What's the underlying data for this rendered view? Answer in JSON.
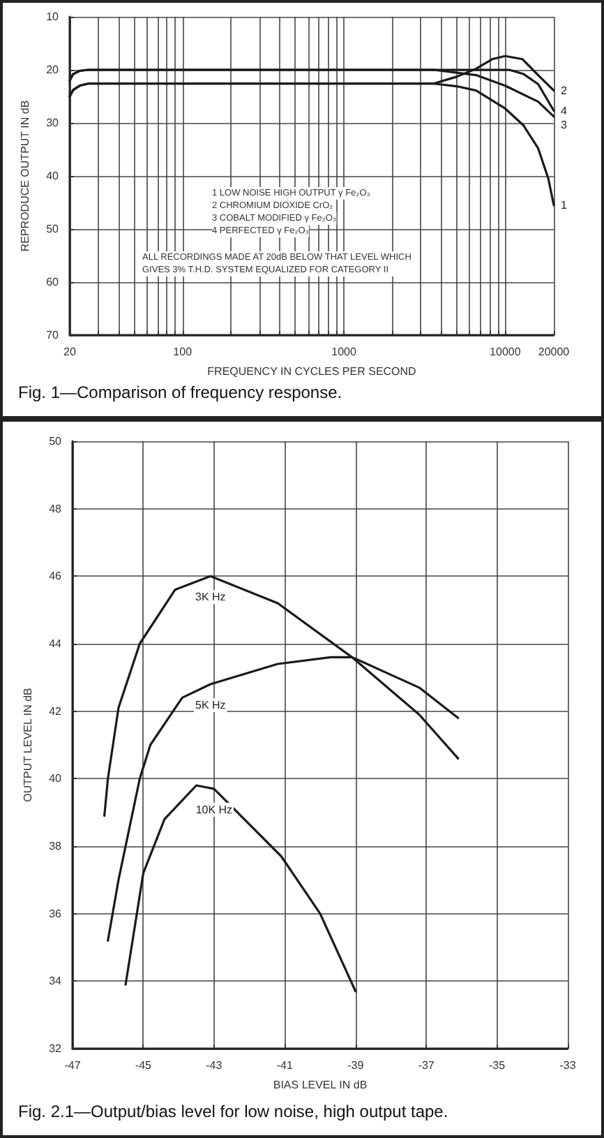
{
  "chart_data": [
    {
      "type": "line",
      "title": "Fig. 1—Comparison of frequency response.",
      "xlabel": "FREQUENCY IN CYCLES PER SECOND",
      "ylabel": "REPRODUCE OUTPUT IN dB",
      "log": "x",
      "grid": true,
      "marker": "none",
      "line_style": "solid",
      "legend": false,
      "xlim": [
        20,
        20000
      ],
      "ylim": [
        70,
        10
      ],
      "xticks": [
        20,
        {
          "value": 30,
          "label": null
        },
        {
          "value": 40,
          "label": null
        },
        {
          "value": 50,
          "label": null
        },
        {
          "value": 60,
          "label": null
        },
        {
          "value": 70,
          "label": null
        },
        {
          "value": 80,
          "label": null
        },
        {
          "value": 90,
          "label": null
        },
        100,
        {
          "value": 200,
          "label": null
        },
        {
          "value": 300,
          "label": null
        },
        {
          "value": 400,
          "label": null
        },
        {
          "value": 500,
          "label": null
        },
        {
          "value": 600,
          "label": null
        },
        {
          "value": 700,
          "label": null
        },
        {
          "value": 800,
          "label": null
        },
        {
          "value": 900,
          "label": null
        },
        1000,
        {
          "value": 2000,
          "label": null
        },
        {
          "value": 3000,
          "label": null
        },
        {
          "value": 4000,
          "label": null
        },
        {
          "value": 5000,
          "label": null
        },
        {
          "value": 6000,
          "label": null
        },
        {
          "value": 7000,
          "label": null
        },
        {
          "value": 8000,
          "label": null
        },
        {
          "value": 9000,
          "label": null
        },
        10000,
        20000
      ],
      "yticks": [
        10,
        20,
        30,
        40,
        50,
        60,
        70
      ],
      "series": [
        {
          "name": "1",
          "color": "#1a1a1a",
          "x": [
            20,
            21,
            23,
            26,
            100,
            1000,
            3600,
            5000,
            6600,
            10000,
            13000,
            16000,
            18500,
            20000
          ],
          "values": [
            25,
            23.8,
            23,
            22.6,
            22.6,
            22.6,
            22.6,
            23.1,
            23.9,
            27.3,
            30.5,
            34.8,
            40.5,
            45.5
          ]
        },
        {
          "name": "2",
          "color": "#1a1a1a",
          "x": [
            20,
            21,
            23,
            26,
            100,
            1000,
            3600,
            5000,
            6600,
            8300,
            10000,
            12800,
            16000,
            20000
          ],
          "values": [
            25,
            23.8,
            23,
            22.6,
            22.6,
            22.6,
            22.6,
            21.3,
            19.8,
            18,
            17.4,
            18,
            21,
            23.9
          ]
        },
        {
          "name": "3",
          "color": "#1a1a1a",
          "x": [
            20,
            21,
            23,
            26,
            100,
            1000,
            3600,
            6600,
            10000,
            16000,
            20000
          ],
          "values": [
            22,
            20.8,
            20.2,
            20,
            20,
            20,
            20,
            21,
            23,
            26,
            28.8
          ]
        },
        {
          "name": "4",
          "color": "#1a1a1a",
          "x": [
            20,
            21,
            23,
            26,
            100,
            1000,
            10600,
            13000,
            16000,
            20000
          ],
          "values": [
            22,
            20.8,
            20.2,
            20,
            20,
            20,
            20,
            20.8,
            22.7,
            27.7
          ]
        }
      ],
      "annotations": [
        "1 LOW NOISE HIGH OUTPUT γ Fe₂O₃",
        "2 CHROMIUM DIOXIDE CrO₂",
        "3 COBALT MODIFIED γ Fe₂O₃",
        "4 PERFECTED γ Fe₂O₃",
        "ALL RECORDINGS MADE AT 20dB BELOW THAT LEVEL WHICH GIVES 3% T.H.D. SYSTEM EQUALIZED FOR CATEGORY II"
      ]
    },
    {
      "type": "line",
      "title": "Fig. 2.1—Output/bias level for low noise, high output tape.",
      "xlabel": "BIAS LEVEL IN dB",
      "ylabel": "OUTPUT LEVEL IN dB",
      "grid": true,
      "marker": "none",
      "line_style": "solid",
      "legend": false,
      "xlim": [
        -47,
        -33
      ],
      "ylim": [
        32,
        50
      ],
      "xticks": [
        -47,
        -45,
        -43,
        -41,
        -39,
        -37,
        -35,
        -33
      ],
      "yticks": [
        32,
        34,
        36,
        38,
        40,
        42,
        44,
        46,
        48,
        50
      ],
      "series": [
        {
          "name": "3K Hz",
          "color": "#1a1a1a",
          "x": [
            -46.1,
            -46,
            -45.7,
            -45.1,
            -44.1,
            -43.1,
            -41.2,
            -39.1,
            -37.2,
            -36.1
          ],
          "values": [
            38.9,
            40,
            42.1,
            44,
            45.6,
            46,
            45.2,
            43.6,
            41.9,
            40.6
          ]
        },
        {
          "name": "5K Hz",
          "color": "#1a1a1a",
          "x": [
            -46,
            -45.7,
            -45.1,
            -44.8,
            -43.9,
            -43.1,
            -41.2,
            -39.7,
            -39.1,
            -37.2,
            -36.1
          ],
          "values": [
            35.2,
            37,
            40,
            41,
            42.4,
            42.8,
            43.4,
            43.6,
            43.6,
            42.7,
            41.8
          ]
        },
        {
          "name": "10K Hz",
          "color": "#1a1a1a",
          "x": [
            -45.5,
            -45,
            -44.4,
            -43.5,
            -43,
            -41.1,
            -40,
            -39
          ],
          "values": [
            33.9,
            37.2,
            38.8,
            39.8,
            39.7,
            37.7,
            36,
            33.7
          ]
        }
      ]
    }
  ]
}
